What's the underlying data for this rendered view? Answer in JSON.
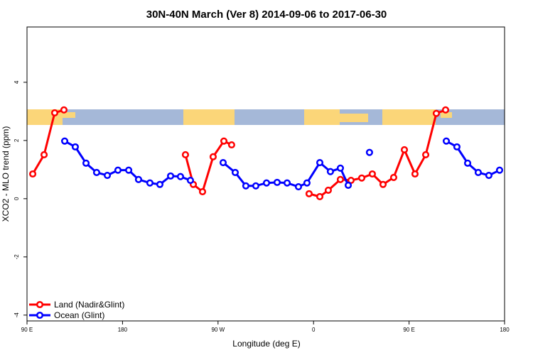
{
  "chart_data": {
    "type": "line",
    "title": "30N-40N March (Ver 8)   2014-09-06 to 2017-06-30",
    "x_label": "Longitude (deg E)",
    "y_label": "XCO2 - MLO trend (ppm)",
    "xlim": [
      90,
      540
    ],
    "xticks": [
      {
        "value": 90,
        "label": "90 E"
      },
      180,
      {
        "value": 270,
        "label": "90 W"
      },
      {
        "value": 360,
        "label": "0"
      },
      {
        "value": 450,
        "label": "90 E"
      },
      {
        "value": 540,
        "label": "180"
      }
    ],
    "ylim": [
      -4.2,
      5.9
    ],
    "yticks": [
      -4,
      -2,
      0,
      2,
      4
    ],
    "legend": "bottom-left",
    "series": [
      {
        "name": "Land (Nadir&Glint)",
        "color": "#ff0000",
        "x": [
          95.4,
          106.1,
          116.1,
          124.8,
          null,
          239.3,
          246.7,
          255.4,
          265.4,
          275.5,
          282.8,
          null,
          355.8,
          365.9,
          373.9,
          385.3,
          395.3,
          405.4,
          415.4,
          425.5,
          435.5,
          445.6,
          455.6,
          465.7,
          475.7,
          484.4
        ],
        "values": [
          0.85,
          1.51,
          2.95,
          3.05,
          null,
          1.51,
          0.49,
          0.24,
          1.44,
          1.98,
          1.85,
          null,
          0.17,
          0.07,
          0.29,
          0.66,
          0.63,
          0.71,
          0.85,
          0.49,
          0.73,
          1.68,
          0.85,
          1.51,
          2.93,
          3.05
        ]
      },
      {
        "name": "Ocean (Glint)",
        "color": "#0000ff",
        "x": [
          125.5,
          135.5,
          145.6,
          155.6,
          165.7,
          175.7,
          185.8,
          195.1,
          205.8,
          215.2,
          225.3,
          234.6,
          244.0,
          null,
          274.8,
          286.2,
          296.2,
          305.6,
          315.7,
          325.7,
          335.1,
          345.8,
          353.8,
          365.9,
          375.9,
          385.3,
          392.7,
          null,
          412.7,
          null,
          485.1,
          495.1,
          505.2,
          515.2,
          525.2,
          535.3
        ],
        "values": [
          1.98,
          1.78,
          1.22,
          0.9,
          0.8,
          0.98,
          0.98,
          0.66,
          0.54,
          0.49,
          0.78,
          0.76,
          0.63,
          null,
          1.24,
          0.9,
          0.44,
          0.44,
          0.54,
          0.56,
          0.54,
          0.41,
          0.54,
          1.24,
          0.93,
          1.05,
          0.46,
          null,
          1.59,
          null,
          1.98,
          1.78,
          1.22,
          0.9,
          0.8,
          0.98
        ]
      }
    ]
  }
}
